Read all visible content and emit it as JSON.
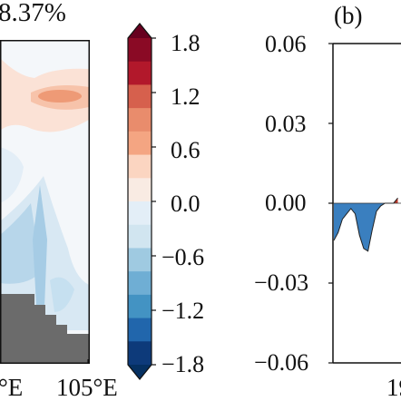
{
  "chart_data": [
    {
      "type": "heatmap",
      "title_fragment": "8.37%",
      "x_tick_labels": [
        "°E",
        "105°E"
      ],
      "colormap": "RdBu_r",
      "land_mask_color": "#6b6b6b"
    },
    {
      "type": "colorbar",
      "ticks": [
        "1.8",
        "1.2",
        "0.6",
        "0.0",
        "−0.6",
        "−1.2",
        "−1.8"
      ],
      "range": [
        -1.8,
        1.8
      ],
      "step": 0.3,
      "extend": "both",
      "colors": [
        "#67001f",
        "#8a0a25",
        "#b2182b",
        "#d6604d",
        "#e98c6c",
        "#f4a582",
        "#fbd5c1",
        "#f9ebe3",
        "#e3eef7",
        "#d1e5f0",
        "#9fcae1",
        "#6faed4",
        "#4393c3",
        "#2166ac",
        "#0d3a7a",
        "#053061"
      ]
    },
    {
      "type": "area",
      "panel_label": "(b)",
      "ylim": [
        -0.06,
        0.06
      ],
      "y_ticks": [
        "0.06",
        "0.03",
        "0.00",
        "−0.03",
        "−0.06"
      ],
      "x_tick_fragment": "19",
      "series": [
        {
          "x": [
            0,
            1,
            2,
            3,
            4,
            5,
            6,
            7,
            8,
            9,
            10,
            11,
            12,
            13,
            14,
            15
          ],
          "values": [
            -0.014,
            -0.011,
            -0.006,
            -0.004,
            -0.002,
            -0.004,
            -0.012,
            -0.017,
            -0.018,
            -0.01,
            -0.003,
            -0.001,
            0.0,
            0.0,
            0.0,
            0.002
          ]
        }
      ],
      "positive_color": "#c0392b",
      "negative_color": "#3a7fbf"
    }
  ]
}
